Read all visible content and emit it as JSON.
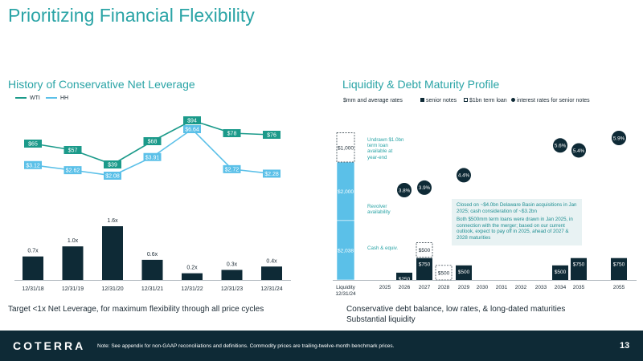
{
  "slide": {
    "title": "Prioritizing Financial Flexibility",
    "page_number": "13"
  },
  "left": {
    "subtitle": "History of Conservative Net Leverage",
    "footnote": "Target <1x Net Leverage, for maximum flexibility through all price cycles"
  },
  "right": {
    "subtitle": "Liquidity & Debt Maturity Profile",
    "footnote_line1": "Conservative debt balance, low rates, & long-dated maturities",
    "footnote_line2": "Substantial liquidity",
    "units_label": "$mm and average rates",
    "callout_line1": "Closed on ~$4.0bn Delaware Basin acquisitions in Jan 2025; cash consideration of ~$3.2bn",
    "callout_line2": "Both $500mm term loans were drawn in Jan 2025, in connection with the merger; based on our current outlook, expect to pay off in 2025, ahead of 2027 & 2028 maturities",
    "annotation_undrawn": "Undrawn $1.0bn term loan available at year-end",
    "annotation_revolver": "Revolver availability",
    "annotation_cash": "Cash & equiv."
  },
  "footer": {
    "logo": "COTERRA",
    "note": "Note: See appendix for non-GAAP reconciliations and definitions. Commodity prices are trailing-twelve-month benchmark prices."
  },
  "colors": {
    "teal": "#2aa4a6",
    "navy": "#0e2a36",
    "light_blue": "#5bc0e8",
    "dark": "#1b2a34"
  },
  "chart_data": [
    {
      "type": "line",
      "categories": [
        "12/31/18",
        "12/31/19",
        "12/31/20",
        "12/31/21",
        "12/31/22",
        "12/31/23",
        "12/31/24"
      ],
      "series": [
        {
          "name": "WTI",
          "values": [
            65,
            57,
            39,
            68,
            94,
            78,
            76
          ],
          "labels": [
            "$65",
            "$57",
            "$39",
            "$68",
            "$94",
            "$78",
            "$76"
          ],
          "color": "#1b9a8a"
        },
        {
          "name": "HH",
          "values": [
            3.12,
            2.62,
            2.08,
            3.91,
            6.64,
            2.72,
            2.28
          ],
          "labels": [
            "$3.12",
            "$2.62",
            "$2.08",
            "$3.91",
            "$6.64",
            "$2.72",
            "$2.28"
          ],
          "color": "#5bc0e8"
        }
      ]
    },
    {
      "type": "bar",
      "categories": [
        "12/31/18",
        "12/31/19",
        "12/31/20",
        "12/31/21",
        "12/31/22",
        "12/31/23",
        "12/31/24"
      ],
      "values": [
        0.7,
        1.0,
        1.6,
        0.6,
        0.2,
        0.3,
        0.4
      ],
      "labels": [
        "0.7x",
        "1.0x",
        "1.6x",
        "0.6x",
        "0.2x",
        "0.3x",
        "0.4x"
      ],
      "ylim": [
        0,
        1.6
      ]
    },
    {
      "type": "bar",
      "legend": [
        "senior notes",
        "$1bn term loan",
        "interest rates for senior notes"
      ],
      "categories": [
        "Liquidity 12/31/24",
        "2025",
        "2026",
        "2027",
        "2028",
        "2029",
        "2030",
        "2031",
        "2032",
        "2033",
        "2034",
        "2035",
        "2055"
      ],
      "category_line2": [
        "12/31/24"
      ],
      "liquidity": [
        {
          "name": "Cash & equiv.",
          "value": 2038,
          "label": "$2,038"
        },
        {
          "name": "Revolver availability",
          "value": 2000,
          "label": "$2,000"
        },
        {
          "name": "Undrawn term loan",
          "value": 1000,
          "label": "$1,000"
        }
      ],
      "senior_notes": [
        {
          "year": "2026",
          "value": 250,
          "label": "$250"
        },
        {
          "year": "2027",
          "value": 750,
          "label": "$750"
        },
        {
          "year": "2029",
          "value": 500,
          "label": "$500"
        },
        {
          "year": "2034",
          "value": 500,
          "label": "$500"
        },
        {
          "year": "2035",
          "value": 750,
          "label": "$750"
        },
        {
          "year": "2055",
          "value": 750,
          "label": "$750"
        }
      ],
      "term_loans": [
        {
          "year": "2027",
          "value": 500,
          "label": "$500"
        },
        {
          "year": "2028",
          "value": 500,
          "label": "$500"
        }
      ],
      "rates": [
        {
          "year": "2026",
          "value": 3.8,
          "label": "3.8%"
        },
        {
          "year": "2027",
          "value": 3.9,
          "label": "3.9%"
        },
        {
          "year": "2029",
          "value": 4.4,
          "label": "4.4%"
        },
        {
          "year": "2034",
          "value": 5.6,
          "label": "5.6%"
        },
        {
          "year": "2035",
          "value": 5.4,
          "label": "5.4%"
        },
        {
          "year": "2055",
          "value": 5.9,
          "label": "5.9%"
        }
      ]
    }
  ]
}
